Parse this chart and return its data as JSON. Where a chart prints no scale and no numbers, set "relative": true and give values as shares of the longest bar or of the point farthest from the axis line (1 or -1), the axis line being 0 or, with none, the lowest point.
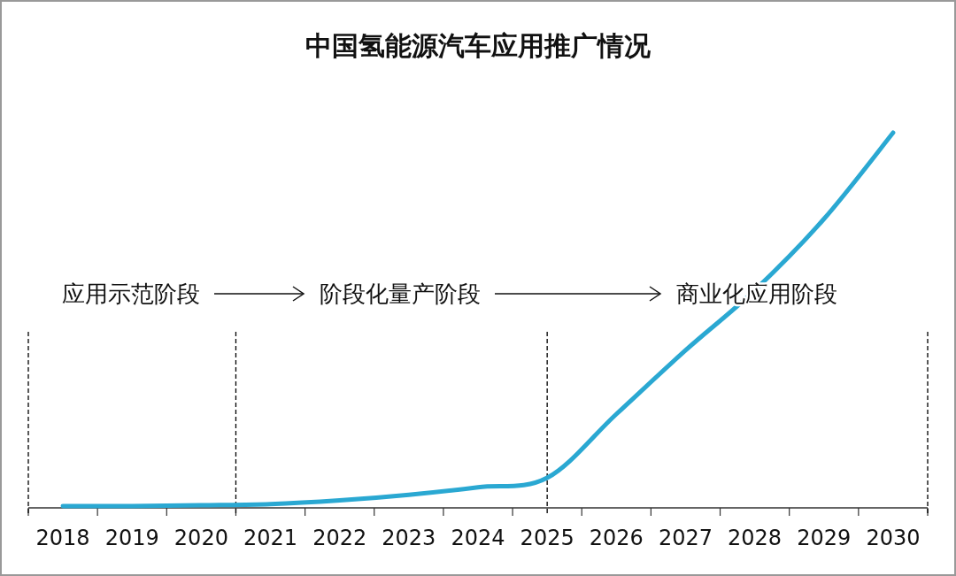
{
  "chart_data": {
    "type": "line",
    "title": "中国氢能源汽车应用推广情况",
    "relative": true,
    "x": [
      2018,
      2019,
      2020,
      2021,
      2022,
      2023,
      2024,
      2025,
      2026,
      2027,
      2028,
      2029,
      2030
    ],
    "xlim": [
      2017.5,
      2030.5
    ],
    "xticks": [
      2018,
      2019,
      2020,
      2021,
      2022,
      2023,
      2024,
      2025,
      2026,
      2027,
      2028,
      2029,
      2030
    ],
    "series": [
      {
        "color": "#2aa8d2",
        "values": [
          0.005,
          0.005,
          0.007,
          0.01,
          0.02,
          0.035,
          0.055,
          0.08,
          0.25,
          0.42,
          0.58,
          0.77,
          1.0
        ]
      }
    ],
    "ref_lines": [
      {
        "axis": "x",
        "value": 2017.5,
        "color": "#000000",
        "line_style": "dashed"
      },
      {
        "axis": "x",
        "value": 2020.5,
        "color": "#000000",
        "line_style": "dashed"
      },
      {
        "axis": "x",
        "value": 2025,
        "color": "#000000",
        "line_style": "dashed"
      },
      {
        "axis": "x",
        "value": 2030.5,
        "color": "#000000",
        "line_style": "dashed"
      }
    ],
    "annotations": [
      "应用示范阶段",
      "阶段化量产阶段",
      "商业化应用阶段"
    ],
    "marker": "none",
    "line_style": "solid"
  }
}
